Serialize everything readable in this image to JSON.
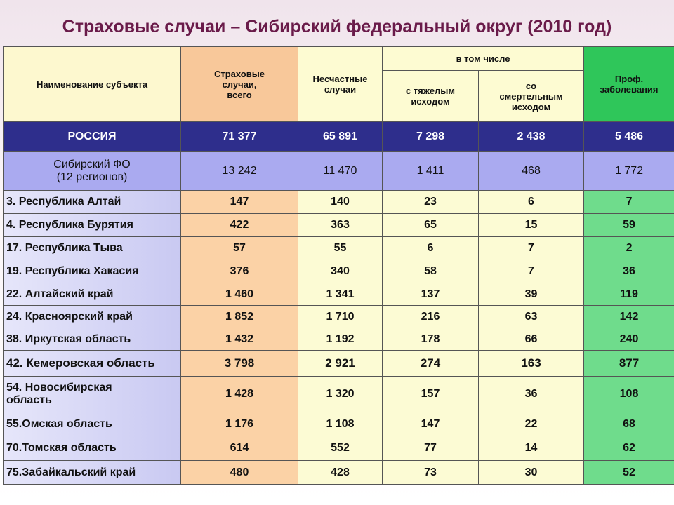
{
  "title": "Страховые случаи – Сибирский федеральный округ (2010 год)",
  "table": {
    "header": {
      "name": "Наименование субъекта",
      "insured": "Страховые\nслучаи,\nвсего",
      "accidents": "Несчастные\nслучаи",
      "including": "в том числе",
      "severe": "с тяжелым\nисходом",
      "fatal": "со\nсмертельным\nисходом",
      "occupational": "Проф.\nзаболевания"
    },
    "rows": [
      [
        "РОССИЯ",
        "71 377",
        "65 891",
        "7 298",
        "2 438",
        "5 486"
      ],
      [
        "Сибирский ФО\n(12 регионов)",
        "13 242",
        "11 470",
        "1 411",
        "468",
        "1 772"
      ],
      [
        "3.  Республика Алтай",
        "147",
        "140",
        "23",
        "6",
        "7"
      ],
      [
        "4. Республика Бурятия",
        "422",
        "363",
        "65",
        "15",
        "59"
      ],
      [
        "17. Республика Тыва",
        "57",
        "55",
        "6",
        "7",
        "2"
      ],
      [
        "19. Республика Хакасия",
        "376",
        "340",
        "58",
        "7",
        "36"
      ],
      [
        "22. Алтайский край",
        "1 460",
        "1 341",
        "137",
        "39",
        "119"
      ],
      [
        "24. Красноярский край",
        "1 852",
        "1 710",
        "216",
        "63",
        "142"
      ],
      [
        "38. Иркутская область",
        "1 432",
        "1 192",
        "178",
        "66",
        "240"
      ],
      [
        "42. Кемеровская область",
        "3 798",
        "2 921",
        "274",
        "163",
        "877"
      ],
      [
        "54. Новосибирская\nобласть",
        "1 428",
        "1 320",
        "157",
        "36",
        "108"
      ],
      [
        "55.Омская область",
        "1 176",
        "1 108",
        "147",
        "22",
        "68"
      ],
      [
        "70.Томская область",
        "614",
        "552",
        "77",
        "14",
        "62"
      ],
      [
        "75.Забайкальский край",
        "480",
        "428",
        "73",
        "30",
        "52"
      ]
    ]
  }
}
